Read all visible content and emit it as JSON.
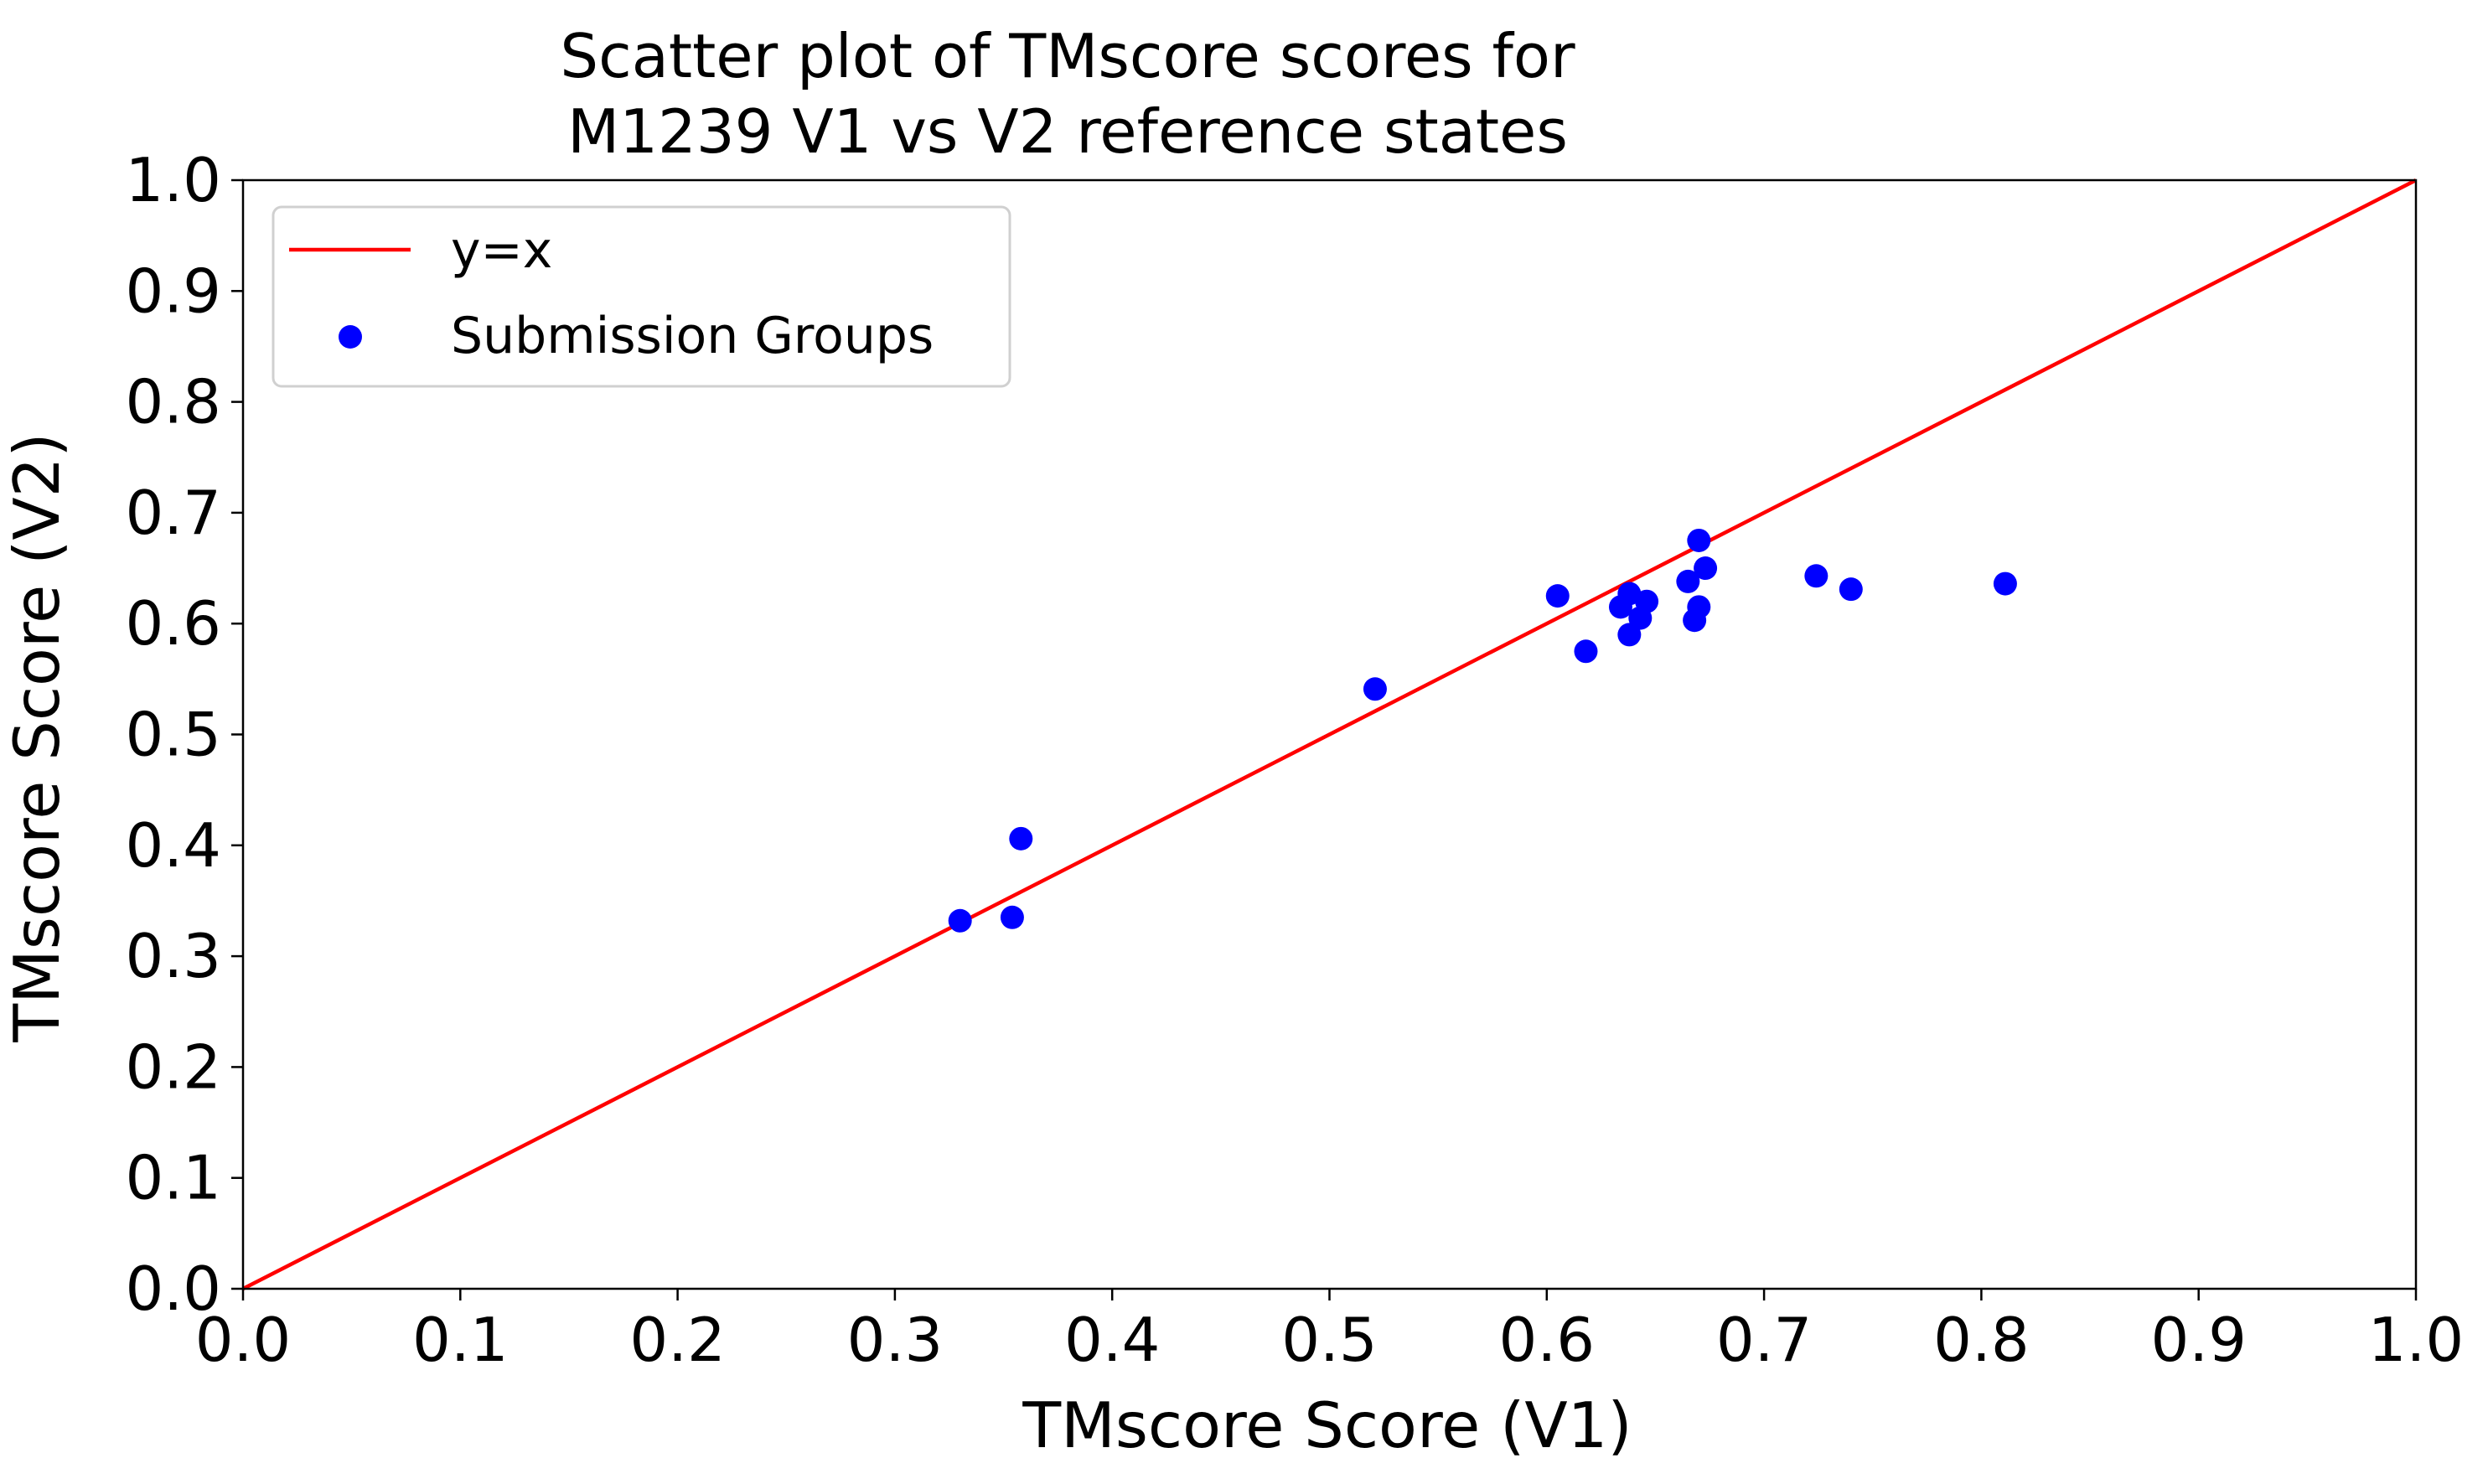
{
  "chart_data": {
    "type": "scatter",
    "title": [
      "Scatter plot of TMscore scores for",
      "M1239 V1 vs V2 reference states"
    ],
    "xlabel": "TMscore Score (V1)",
    "ylabel": "TMscore Score (V2)",
    "xlim": [
      0.0,
      1.0
    ],
    "ylim": [
      0.0,
      1.0
    ],
    "xticks": [
      "0.0",
      "0.1",
      "0.2",
      "0.3",
      "0.4",
      "0.5",
      "0.6",
      "0.7",
      "0.8",
      "0.9",
      "1.0"
    ],
    "yticks": [
      "0.0",
      "0.1",
      "0.2",
      "0.3",
      "0.4",
      "0.5",
      "0.6",
      "0.7",
      "0.8",
      "0.9",
      "1.0"
    ],
    "grid": false,
    "legend": {
      "placement": "upper-left",
      "entries": [
        {
          "label": "y=x",
          "kind": "line",
          "color": "#ff0000"
        },
        {
          "label": "Submission Groups",
          "kind": "marker",
          "color": "#0000ff"
        }
      ]
    },
    "reference_line": {
      "name": "y=x",
      "points": [
        [
          0.0,
          0.0
        ],
        [
          1.0,
          1.0
        ]
      ],
      "color": "#ff0000"
    },
    "series": [
      {
        "name": "Submission Groups",
        "color": "#0000ff",
        "points": [
          [
            0.33,
            0.332
          ],
          [
            0.354,
            0.335
          ],
          [
            0.358,
            0.406
          ],
          [
            0.521,
            0.541
          ],
          [
            0.605,
            0.625
          ],
          [
            0.618,
            0.575
          ],
          [
            0.634,
            0.615
          ],
          [
            0.638,
            0.627
          ],
          [
            0.638,
            0.59
          ],
          [
            0.643,
            0.605
          ],
          [
            0.646,
            0.62
          ],
          [
            0.665,
            0.638
          ],
          [
            0.668,
            0.603
          ],
          [
            0.67,
            0.675
          ],
          [
            0.67,
            0.615
          ],
          [
            0.673,
            0.65
          ],
          [
            0.724,
            0.643
          ],
          [
            0.74,
            0.631
          ],
          [
            0.811,
            0.636
          ]
        ]
      }
    ]
  }
}
